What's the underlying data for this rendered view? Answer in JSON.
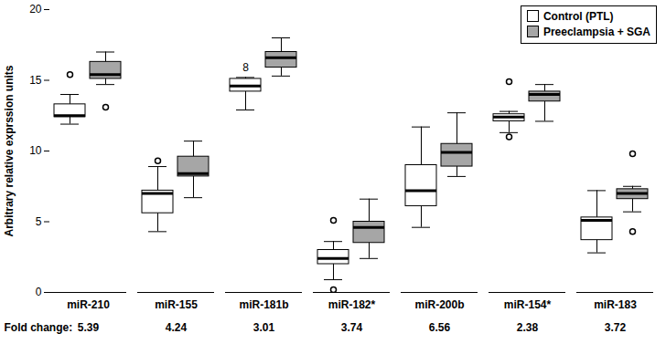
{
  "chart_data": {
    "type": "box",
    "ylabel": "Arbitrary relative exprssion units",
    "ylim": [
      0,
      20
    ],
    "yticks": [
      0,
      5,
      10,
      15,
      20
    ],
    "grid": false,
    "legend": "top-right",
    "categories": [
      "miR-210",
      "miR-155",
      "miR-181b",
      "miR-182*",
      "miR-200b",
      "miR-154*",
      "miR-183"
    ],
    "fold_change": {
      "label": "Fold change:",
      "values": [
        5.39,
        4.24,
        3.01,
        3.74,
        6.56,
        2.38,
        3.72
      ]
    },
    "series": [
      {
        "name": "Control (PTL)",
        "color": "#ffffff",
        "boxes": [
          {
            "min": 11.9,
            "q1": 12.4,
            "median": 12.5,
            "q3": 13.3,
            "max": 14.0,
            "outliers": [
              15.4
            ]
          },
          {
            "min": 4.3,
            "q1": 5.6,
            "median": 7.0,
            "q3": 7.2,
            "max": 8.9,
            "outliers": [
              9.3
            ]
          },
          {
            "min": 12.9,
            "q1": 14.2,
            "median": 14.6,
            "q3": 15.1,
            "max": 15.2,
            "outliers": [
              {
                "value": 15.9,
                "label": "8"
              }
            ]
          },
          {
            "min": 0.9,
            "q1": 2.0,
            "median": 2.4,
            "q3": 3.0,
            "max": 3.6,
            "outliers": [
              5.1,
              0.2
            ]
          },
          {
            "min": 4.6,
            "q1": 6.1,
            "median": 7.2,
            "q3": 9.0,
            "max": 11.7,
            "outliers": []
          },
          {
            "min": 11.3,
            "q1": 12.1,
            "median": 12.4,
            "q3": 12.6,
            "max": 12.8,
            "outliers": [
              14.9,
              11.0
            ]
          },
          {
            "min": 2.8,
            "q1": 3.7,
            "median": 5.1,
            "q3": 5.3,
            "max": 7.2,
            "outliers": []
          }
        ]
      },
      {
        "name": "Preeclampsia + SGA",
        "color": "#a6a6a6",
        "boxes": [
          {
            "min": 14.7,
            "q1": 15.1,
            "median": 15.4,
            "q3": 16.3,
            "max": 17.0,
            "outliers": [
              13.1
            ]
          },
          {
            "min": 6.7,
            "q1": 8.2,
            "median": 8.4,
            "q3": 9.6,
            "max": 10.7,
            "outliers": []
          },
          {
            "min": 15.3,
            "q1": 15.9,
            "median": 16.6,
            "q3": 17.0,
            "max": 18.0,
            "outliers": []
          },
          {
            "min": 2.4,
            "q1": 3.5,
            "median": 4.6,
            "q3": 5.0,
            "max": 6.6,
            "outliers": []
          },
          {
            "min": 8.2,
            "q1": 8.9,
            "median": 9.9,
            "q3": 10.5,
            "max": 12.7,
            "outliers": []
          },
          {
            "min": 12.1,
            "q1": 13.5,
            "median": 14.0,
            "q3": 14.2,
            "max": 14.7,
            "outliers": []
          },
          {
            "min": 5.7,
            "q1": 6.6,
            "median": 7.0,
            "q3": 7.3,
            "max": 7.5,
            "outliers": [
              9.8,
              4.3
            ]
          }
        ]
      }
    ]
  }
}
